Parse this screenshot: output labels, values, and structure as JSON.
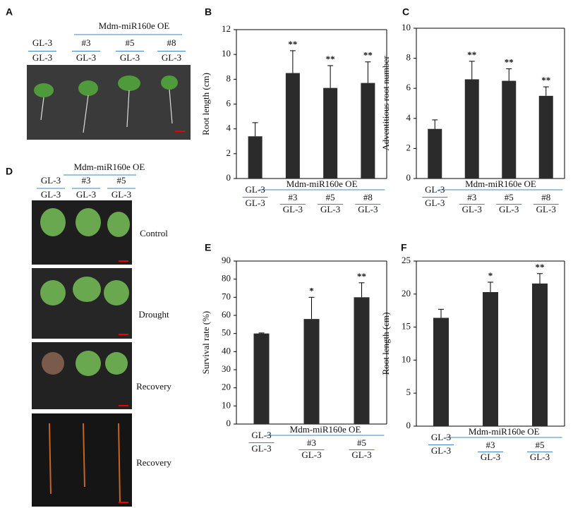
{
  "photo_panels": [
    {
      "letter": "A",
      "group_label": "Mdm-miR160e OE",
      "tops": [
        "GL-3",
        "#3",
        "#5",
        "#8"
      ],
      "bottoms": [
        "GL-3",
        "GL-3",
        "GL-3",
        "GL-3"
      ]
    },
    {
      "letter": "D",
      "group_label": "Mdm-miR160e OE",
      "tops": [
        "GL-3",
        "#3",
        "#5"
      ],
      "bottoms": [
        "GL-3",
        "GL-3",
        "GL-3"
      ],
      "conditions": [
        "Control",
        "Drought",
        "Recovery",
        "Recovery"
      ]
    }
  ],
  "chart_data": [
    {
      "type": "bar",
      "letter": "B",
      "y_label": "Root length (cm)",
      "group_label": "Mdm-miR160e OE",
      "categories": [
        "GL-3",
        "#3",
        "#5",
        "#8"
      ],
      "category_bottoms": [
        "GL-3",
        "GL-3",
        "GL-3",
        "GL-3"
      ],
      "values": [
        3.4,
        8.5,
        7.3,
        7.7
      ],
      "errors": [
        1.1,
        1.8,
        1.8,
        1.7
      ],
      "significance": [
        null,
        "**",
        "**",
        "**"
      ],
      "color": "#2b2b2b",
      "ylim": [
        0,
        12
      ],
      "yticks": [
        0,
        2,
        4,
        6,
        8,
        10,
        12
      ]
    },
    {
      "type": "bar",
      "letter": "C",
      "y_label": "Adventitious root number",
      "group_label": "Mdm-miR160e OE",
      "categories": [
        "GL-3",
        "#3",
        "#5",
        "#8"
      ],
      "category_bottoms": [
        "GL-3",
        "GL-3",
        "GL-3",
        "GL-3"
      ],
      "values": [
        3.3,
        6.6,
        6.5,
        5.5
      ],
      "errors": [
        0.6,
        1.2,
        0.8,
        0.6
      ],
      "significance": [
        null,
        "**",
        "**",
        "**"
      ],
      "color": "#2b2b2b",
      "ylim": [
        0,
        10
      ],
      "yticks": [
        0,
        2,
        4,
        6,
        8,
        10
      ]
    },
    {
      "type": "bar",
      "letter": "E",
      "y_label": "Survival rate (%)",
      "group_label": "Mdm-miR160e OE",
      "categories": [
        "GL-3",
        "#3",
        "#5"
      ],
      "category_bottoms": [
        "GL-3",
        "GL-3",
        "GL-3"
      ],
      "values": [
        50,
        58,
        70
      ],
      "errors": [
        0.3,
        12,
        8
      ],
      "significance": [
        null,
        "*",
        "**"
      ],
      "color": "#2b2b2b",
      "ylim": [
        0,
        90
      ],
      "yticks": [
        0,
        10,
        20,
        30,
        40,
        50,
        60,
        70,
        80,
        90
      ]
    },
    {
      "type": "bar",
      "letter": "F",
      "y_label": "Root length (cm)",
      "group_label": "Mdm-miR160e OE",
      "categories": [
        "GL-3",
        "#3",
        "#5"
      ],
      "category_bottoms": [
        "GL-3",
        "GL-3",
        "GL-3"
      ],
      "values": [
        16.4,
        20.3,
        21.6
      ],
      "errors": [
        1.3,
        1.5,
        1.5
      ],
      "significance": [
        null,
        "*",
        "**"
      ],
      "color": "#2b2b2b",
      "ylim": [
        0,
        25
      ],
      "yticks": [
        0,
        5,
        10,
        15,
        20,
        25
      ]
    }
  ]
}
